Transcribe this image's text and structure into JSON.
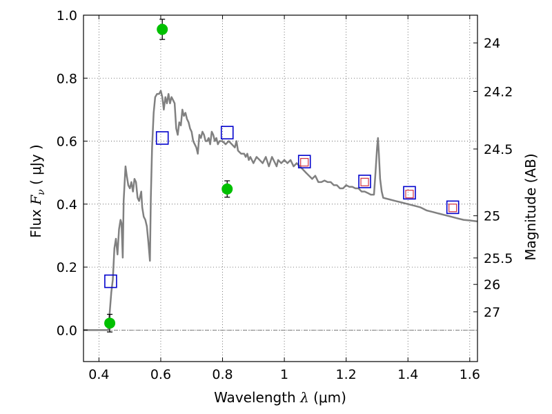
{
  "chart_data": {
    "type": "scatter",
    "xlabel_prefix": "Wavelength  ",
    "xlabel_symbol": "λ",
    "xlabel_unit": " (μm)",
    "ylabel_prefix": "Flux  ",
    "ylabel_symbol": "F",
    "ylabel_sub": "ν",
    "ylabel_unit": "  ( μJy )",
    "y2label": "Magnitude (AB)",
    "xlim": [
      0.35,
      1.625
    ],
    "ylim": [
      -0.1,
      1.0
    ],
    "grid": true,
    "x_ticks": [
      {
        "value": 0.4,
        "label": "0.4"
      },
      {
        "value": 0.6,
        "label": "0.6"
      },
      {
        "value": 0.8,
        "label": "0.8"
      },
      {
        "value": 1.0,
        "label": "1"
      },
      {
        "value": 1.2,
        "label": "1.2"
      },
      {
        "value": 1.4,
        "label": "1.4"
      },
      {
        "value": 1.6,
        "label": "1.6"
      }
    ],
    "y_ticks": [
      {
        "value": 0.0,
        "label": "0.0"
      },
      {
        "value": 0.2,
        "label": "0.2"
      },
      {
        "value": 0.4,
        "label": "0.4"
      },
      {
        "value": 0.6,
        "label": "0.6"
      },
      {
        "value": 0.8,
        "label": "0.8"
      },
      {
        "value": 1.0,
        "label": "1.0"
      }
    ],
    "y2_ticks": [
      {
        "flux": 0.912,
        "label": "24"
      },
      {
        "flux": 0.758,
        "label": "24.2"
      },
      {
        "flux": 0.575,
        "label": "24.5"
      },
      {
        "flux": 0.363,
        "label": "25"
      },
      {
        "flux": 0.229,
        "label": "25.5"
      },
      {
        "flux": 0.145,
        "label": "26"
      },
      {
        "flux": 0.058,
        "label": "27"
      }
    ],
    "colors": {
      "sed": "#808080",
      "observed": "#00c000",
      "model": "#0000cc",
      "model_inner": "#d03040",
      "errorbar": "#000000",
      "grid": "#555555",
      "zero_line": "#555555"
    },
    "series": [
      {
        "style": "line",
        "points": [
          [
            0.35,
            0.0
          ],
          [
            0.42,
            0.0
          ],
          [
            0.43,
            0.0
          ],
          [
            0.432,
            0.02
          ],
          [
            0.44,
            0.12
          ],
          [
            0.445,
            0.16
          ],
          [
            0.45,
            0.26
          ],
          [
            0.455,
            0.29
          ],
          [
            0.46,
            0.24
          ],
          [
            0.465,
            0.32
          ],
          [
            0.47,
            0.35
          ],
          [
            0.473,
            0.34
          ],
          [
            0.477,
            0.23
          ],
          [
            0.48,
            0.41
          ],
          [
            0.486,
            0.52
          ],
          [
            0.49,
            0.49
          ],
          [
            0.495,
            0.46
          ],
          [
            0.5,
            0.45
          ],
          [
            0.505,
            0.47
          ],
          [
            0.51,
            0.44
          ],
          [
            0.515,
            0.48
          ],
          [
            0.52,
            0.47
          ],
          [
            0.525,
            0.42
          ],
          [
            0.53,
            0.41
          ],
          [
            0.537,
            0.44
          ],
          [
            0.54,
            0.39
          ],
          [
            0.545,
            0.36
          ],
          [
            0.55,
            0.35
          ],
          [
            0.555,
            0.33
          ],
          [
            0.56,
            0.28
          ],
          [
            0.565,
            0.22
          ],
          [
            0.568,
            0.42
          ],
          [
            0.572,
            0.58
          ],
          [
            0.577,
            0.69
          ],
          [
            0.582,
            0.74
          ],
          [
            0.588,
            0.75
          ],
          [
            0.595,
            0.75
          ],
          [
            0.6,
            0.76
          ],
          [
            0.605,
            0.74
          ],
          [
            0.61,
            0.7
          ],
          [
            0.615,
            0.74
          ],
          [
            0.62,
            0.72
          ],
          [
            0.625,
            0.75
          ],
          [
            0.63,
            0.72
          ],
          [
            0.635,
            0.74
          ],
          [
            0.64,
            0.73
          ],
          [
            0.645,
            0.72
          ],
          [
            0.65,
            0.64
          ],
          [
            0.655,
            0.62
          ],
          [
            0.66,
            0.66
          ],
          [
            0.665,
            0.65
          ],
          [
            0.67,
            0.7
          ],
          [
            0.675,
            0.68
          ],
          [
            0.68,
            0.69
          ],
          [
            0.685,
            0.67
          ],
          [
            0.69,
            0.66
          ],
          [
            0.695,
            0.64
          ],
          [
            0.7,
            0.63
          ],
          [
            0.705,
            0.6
          ],
          [
            0.71,
            0.59
          ],
          [
            0.715,
            0.58
          ],
          [
            0.72,
            0.56
          ],
          [
            0.725,
            0.62
          ],
          [
            0.73,
            0.61
          ],
          [
            0.735,
            0.63
          ],
          [
            0.74,
            0.62
          ],
          [
            0.745,
            0.6
          ],
          [
            0.75,
            0.6
          ],
          [
            0.755,
            0.61
          ],
          [
            0.76,
            0.59
          ],
          [
            0.765,
            0.63
          ],
          [
            0.77,
            0.62
          ],
          [
            0.775,
            0.6
          ],
          [
            0.78,
            0.61
          ],
          [
            0.785,
            0.59
          ],
          [
            0.79,
            0.6
          ],
          [
            0.8,
            0.6
          ],
          [
            0.81,
            0.59
          ],
          [
            0.82,
            0.6
          ],
          [
            0.83,
            0.59
          ],
          [
            0.84,
            0.58
          ],
          [
            0.845,
            0.6
          ],
          [
            0.85,
            0.57
          ],
          [
            0.86,
            0.56
          ],
          [
            0.87,
            0.56
          ],
          [
            0.875,
            0.55
          ],
          [
            0.88,
            0.56
          ],
          [
            0.885,
            0.54
          ],
          [
            0.89,
            0.55
          ],
          [
            0.9,
            0.53
          ],
          [
            0.91,
            0.55
          ],
          [
            0.92,
            0.54
          ],
          [
            0.93,
            0.53
          ],
          [
            0.94,
            0.55
          ],
          [
            0.95,
            0.52
          ],
          [
            0.96,
            0.55
          ],
          [
            0.97,
            0.53
          ],
          [
            0.975,
            0.52
          ],
          [
            0.98,
            0.54
          ],
          [
            0.99,
            0.53
          ],
          [
            1.0,
            0.54
          ],
          [
            1.01,
            0.53
          ],
          [
            1.02,
            0.54
          ],
          [
            1.03,
            0.52
          ],
          [
            1.04,
            0.53
          ],
          [
            1.05,
            0.52
          ],
          [
            1.06,
            0.51
          ],
          [
            1.07,
            0.5
          ],
          [
            1.08,
            0.49
          ],
          [
            1.09,
            0.48
          ],
          [
            1.1,
            0.49
          ],
          [
            1.11,
            0.47
          ],
          [
            1.12,
            0.47
          ],
          [
            1.13,
            0.475
          ],
          [
            1.14,
            0.47
          ],
          [
            1.15,
            0.47
          ],
          [
            1.16,
            0.46
          ],
          [
            1.17,
            0.46
          ],
          [
            1.18,
            0.45
          ],
          [
            1.19,
            0.45
          ],
          [
            1.2,
            0.46
          ],
          [
            1.21,
            0.455
          ],
          [
            1.22,
            0.455
          ],
          [
            1.23,
            0.45
          ],
          [
            1.24,
            0.45
          ],
          [
            1.25,
            0.44
          ],
          [
            1.26,
            0.44
          ],
          [
            1.27,
            0.435
          ],
          [
            1.28,
            0.43
          ],
          [
            1.29,
            0.43
          ],
          [
            1.295,
            0.5
          ],
          [
            1.3,
            0.58
          ],
          [
            1.303,
            0.61
          ],
          [
            1.306,
            0.56
          ],
          [
            1.31,
            0.48
          ],
          [
            1.315,
            0.44
          ],
          [
            1.32,
            0.42
          ],
          [
            1.34,
            0.415
          ],
          [
            1.36,
            0.41
          ],
          [
            1.38,
            0.405
          ],
          [
            1.4,
            0.4
          ],
          [
            1.42,
            0.395
          ],
          [
            1.44,
            0.39
          ],
          [
            1.46,
            0.38
          ],
          [
            1.48,
            0.375
          ],
          [
            1.5,
            0.37
          ],
          [
            1.52,
            0.365
          ],
          [
            1.54,
            0.36
          ],
          [
            1.56,
            0.355
          ],
          [
            1.58,
            0.35
          ],
          [
            1.6,
            0.348
          ],
          [
            1.625,
            0.345
          ]
        ]
      },
      {
        "style": "points-with-errors",
        "points": [
          {
            "x": 0.435,
            "y": 0.022,
            "err": 0.028
          },
          {
            "x": 0.605,
            "y": 0.955,
            "err": 0.032
          },
          {
            "x": 0.815,
            "y": 0.448,
            "err": 0.026
          }
        ]
      },
      {
        "style": "open-squares",
        "points": [
          {
            "x": 0.438,
            "y": 0.155
          },
          {
            "x": 0.605,
            "y": 0.61
          },
          {
            "x": 0.815,
            "y": 0.627
          },
          {
            "x": 1.065,
            "y": 0.535
          },
          {
            "x": 1.26,
            "y": 0.472
          },
          {
            "x": 1.405,
            "y": 0.436
          },
          {
            "x": 1.545,
            "y": 0.39
          }
        ]
      },
      {
        "style": "small-squares",
        "points": [
          {
            "x": 1.065,
            "y": 0.533
          },
          {
            "x": 1.26,
            "y": 0.47
          },
          {
            "x": 1.405,
            "y": 0.432
          },
          {
            "x": 1.545,
            "y": 0.388
          }
        ]
      }
    ]
  }
}
